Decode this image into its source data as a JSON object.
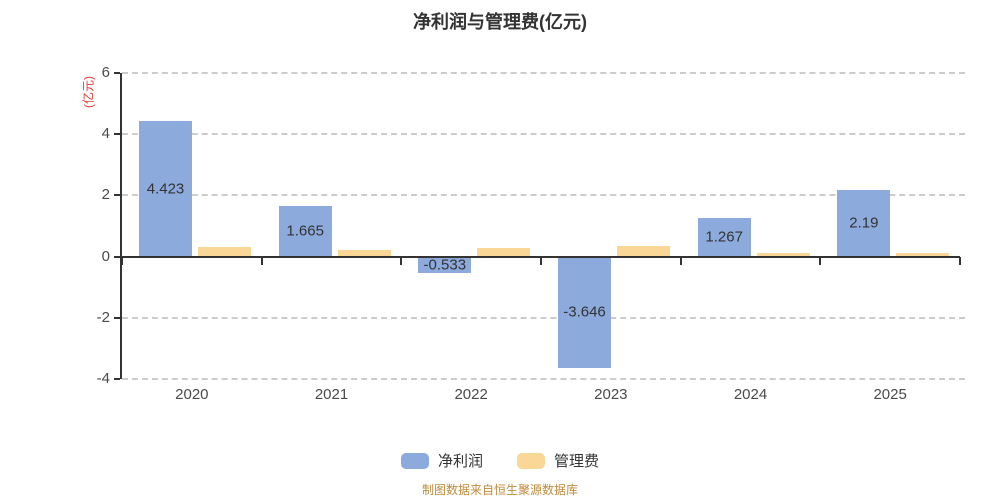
{
  "title": "净利润与管理费(亿元)",
  "y_axis": {
    "name": "(亿元)",
    "name_color": "#e8392e",
    "ticks": [
      6,
      4,
      2,
      0,
      -2,
      -4
    ],
    "tick_labels": [
      "6",
      "4",
      "2",
      "0",
      "-2",
      "-4"
    ]
  },
  "x_axis": {
    "categories": [
      "2020",
      "2021",
      "2022",
      "2023",
      "2024",
      "2025"
    ]
  },
  "footer": {
    "source_note": "制图数据来自恒生聚源数据库",
    "color": "#bf8b3b"
  },
  "chart_data": {
    "type": "bar",
    "title": "净利润与管理费(亿元)",
    "categories": [
      "2020",
      "2021",
      "2022",
      "2023",
      "2024",
      "2025"
    ],
    "series": [
      {
        "name": "净利润",
        "slug": "net-profit",
        "color": "#8caadc",
        "values": [
          4.423,
          1.665,
          -0.533,
          -3.646,
          1.267,
          2.19
        ],
        "labels": [
          "4.423",
          "1.665",
          "-0.533",
          "-3.646",
          "1.267",
          "2.19"
        ],
        "labels_visible": true
      },
      {
        "name": "管理费",
        "slug": "management-fee",
        "color": "#fad796",
        "values": [
          0.33,
          0.22,
          0.27,
          0.36,
          0.12,
          0.13
        ],
        "labels": [],
        "labels_visible": false
      }
    ],
    "ylabel": "(亿元)",
    "ylim": [
      -4,
      6
    ],
    "grid": {
      "horizontal": true,
      "style": "dashed",
      "zero_line": "solid"
    },
    "legend_position": "bottom"
  }
}
